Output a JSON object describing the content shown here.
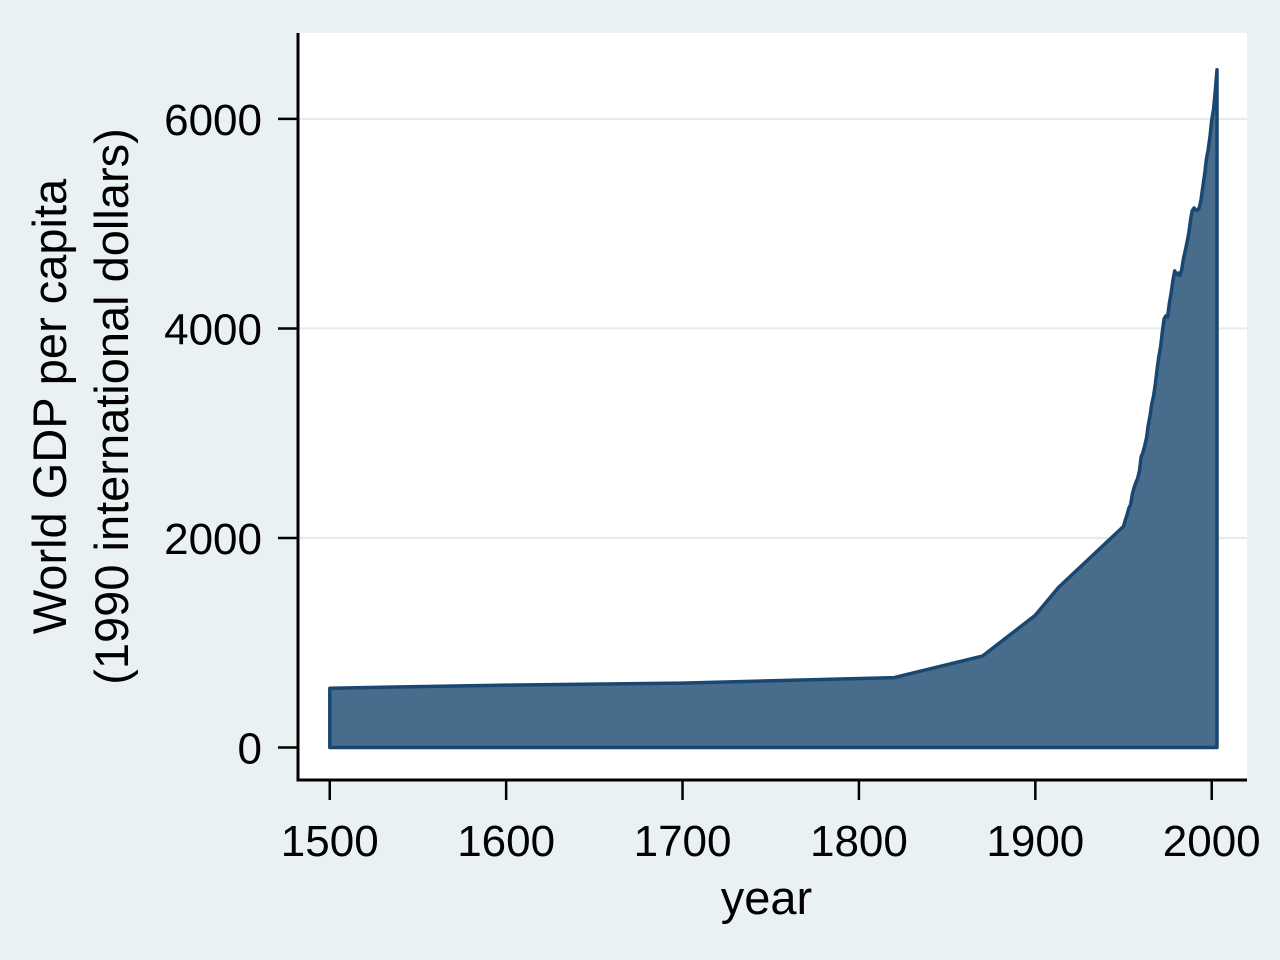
{
  "figure": {
    "background": "#eaf1f3",
    "plot_background": "#ffffff",
    "grid_color": "#e4ecef",
    "axis_color": "#000000",
    "area_fill": "#486d8c",
    "area_line": "#1a476f"
  },
  "chart_data": {
    "type": "area",
    "title": "",
    "xlabel": "year",
    "ylabel_line1": "World GDP per capita",
    "ylabel_line2": "(1990 international dollars)",
    "x_ticks": [
      1500,
      1600,
      1700,
      1800,
      1900,
      2000
    ],
    "y_ticks": [
      0,
      2000,
      4000,
      6000
    ],
    "xlim": [
      1482,
      2020
    ],
    "ylim": [
      -310,
      6820
    ],
    "grid": "horizontal gridlines at y ticks, drawn under series",
    "legend": "none",
    "series": [
      {
        "name": "World GDP per capita (1990 international dollars)",
        "points": [
          [
            1500,
            566
          ],
          [
            1600,
            596
          ],
          [
            1700,
            615
          ],
          [
            1820,
            667
          ],
          [
            1870,
            873
          ],
          [
            1900,
            1262
          ],
          [
            1913,
            1526
          ],
          [
            1950,
            2111
          ],
          [
            1951,
            2171
          ],
          [
            1952,
            2222
          ],
          [
            1953,
            2282
          ],
          [
            1954,
            2318
          ],
          [
            1955,
            2416
          ],
          [
            1956,
            2482
          ],
          [
            1957,
            2530
          ],
          [
            1958,
            2569
          ],
          [
            1959,
            2637
          ],
          [
            1960,
            2777
          ],
          [
            1961,
            2815
          ],
          [
            1962,
            2880
          ],
          [
            1963,
            2954
          ],
          [
            1964,
            3075
          ],
          [
            1965,
            3164
          ],
          [
            1966,
            3276
          ],
          [
            1967,
            3351
          ],
          [
            1968,
            3469
          ],
          [
            1969,
            3602
          ],
          [
            1970,
            3729
          ],
          [
            1971,
            3825
          ],
          [
            1972,
            3966
          ],
          [
            1973,
            4091
          ],
          [
            1974,
            4121
          ],
          [
            1975,
            4109
          ],
          [
            1976,
            4244
          ],
          [
            1977,
            4341
          ],
          [
            1978,
            4458
          ],
          [
            1979,
            4549
          ],
          [
            1980,
            4514
          ],
          [
            1981,
            4528
          ],
          [
            1982,
            4504
          ],
          [
            1983,
            4563
          ],
          [
            1984,
            4669
          ],
          [
            1985,
            4745
          ],
          [
            1986,
            4820
          ],
          [
            1987,
            4911
          ],
          [
            1988,
            5039
          ],
          [
            1989,
            5126
          ],
          [
            1990,
            5150
          ],
          [
            1991,
            5130
          ],
          [
            1992,
            5130
          ],
          [
            1993,
            5155
          ],
          [
            1994,
            5233
          ],
          [
            1995,
            5357
          ],
          [
            1996,
            5475
          ],
          [
            1997,
            5615
          ],
          [
            1998,
            5709
          ],
          [
            1999,
            5833
          ],
          [
            2000,
            5988
          ],
          [
            2001,
            6090
          ],
          [
            2002,
            6260
          ],
          [
            2003,
            6469
          ]
        ]
      }
    ]
  }
}
